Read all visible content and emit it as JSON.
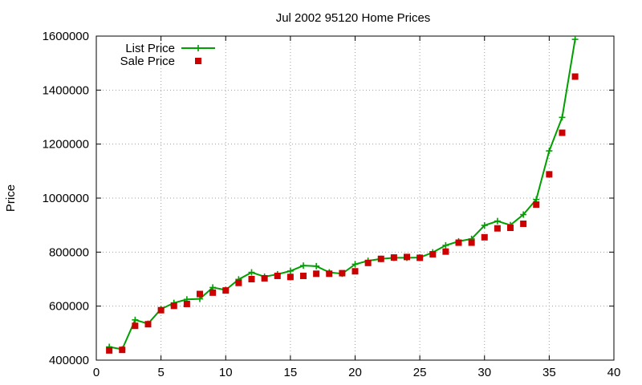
{
  "chart_data": {
    "type": "line",
    "title": "Jul 2002 95120 Home Prices",
    "xlabel": "",
    "ylabel": "Price",
    "xlim": [
      0,
      40
    ],
    "ylim": [
      400000,
      1600000
    ],
    "xticks": [
      0,
      5,
      10,
      15,
      20,
      25,
      30,
      35,
      40
    ],
    "yticks": [
      400000,
      600000,
      800000,
      1000000,
      1200000,
      1400000,
      1600000
    ],
    "xtick_labels": [
      "0",
      "5",
      "10",
      "15",
      "20",
      "25",
      "30",
      "35",
      "40"
    ],
    "ytick_labels": [
      "400000",
      "600000",
      "800000",
      "1000000",
      "1200000",
      "1400000",
      "1600000"
    ],
    "grid": true,
    "legend_position": "top-left",
    "x": [
      1,
      2,
      3,
      4,
      5,
      6,
      7,
      8,
      9,
      10,
      11,
      12,
      13,
      14,
      15,
      16,
      17,
      18,
      19,
      20,
      21,
      22,
      23,
      24,
      25,
      26,
      27,
      28,
      29,
      30,
      31,
      32,
      33,
      34,
      35,
      36,
      37
    ],
    "series": [
      {
        "name": "List Price",
        "style": "lines+points",
        "color": "#00a000",
        "marker": "plus",
        "values": [
          449000,
          440000,
          549000,
          535000,
          589000,
          612000,
          625000,
          627000,
          669000,
          660000,
          699000,
          725000,
          709000,
          718000,
          730000,
          750000,
          748000,
          725000,
          720000,
          755000,
          768000,
          775000,
          779000,
          779000,
          780000,
          799000,
          825000,
          840000,
          849000,
          899000,
          915000,
          900000,
          939000,
          995000,
          1175000,
          1299000,
          1588000
        ]
      },
      {
        "name": "Sale Price",
        "style": "points",
        "color": "#cc0000",
        "marker": "square",
        "values": [
          436000,
          438000,
          527000,
          533000,
          585000,
          601000,
          608000,
          645000,
          650000,
          658000,
          686000,
          700000,
          703000,
          712000,
          708000,
          712000,
          720000,
          720000,
          722000,
          729000,
          760000,
          775000,
          780000,
          782000,
          779000,
          792000,
          802000,
          835000,
          835000,
          855000,
          888000,
          890000,
          905000,
          976000,
          1088000,
          1242000,
          1450000
        ]
      }
    ]
  }
}
